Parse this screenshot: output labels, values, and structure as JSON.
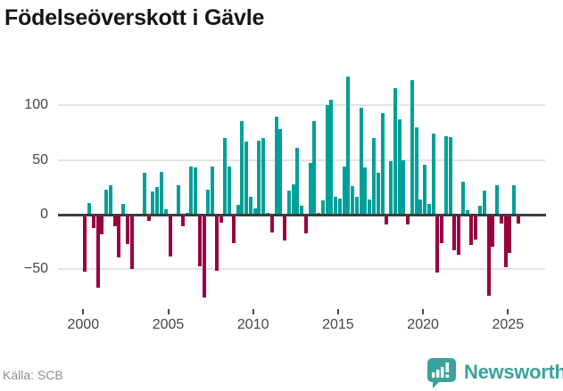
{
  "title": "Födelseöverskott i Gävle",
  "source": {
    "label": "Källa: SCB"
  },
  "branding": {
    "name": "Newsworthy",
    "color": "#3aa29c",
    "icon": "speech-bubble-with-bar-chart"
  },
  "chart_data": {
    "type": "bar",
    "title": "Födelseöverskott i Gävle",
    "xlabel": "",
    "ylabel": "",
    "frequency": "quarterly",
    "start_period": "2000-Q1",
    "end_period": "2025-Q3",
    "values": [
      -52,
      11,
      -12,
      -67,
      -18,
      23,
      27,
      -11,
      -39,
      10,
      -27,
      -50,
      0,
      0,
      38,
      -6,
      21,
      25,
      39,
      5,
      -38,
      0,
      27,
      -11,
      2,
      44,
      43,
      -47,
      -76,
      23,
      44,
      -51,
      -7,
      70,
      44,
      -26,
      9,
      86,
      67,
      16,
      6,
      68,
      70,
      2,
      -16,
      90,
      78,
      -24,
      22,
      28,
      61,
      8,
      -17,
      47,
      86,
      2,
      13,
      100,
      105,
      16,
      15,
      44,
      126,
      26,
      16,
      98,
      43,
      14,
      70,
      38,
      93,
      -9,
      49,
      116,
      87,
      50,
      -9,
      123,
      80,
      14,
      46,
      10,
      74,
      -53,
      -26,
      72,
      71,
      -33,
      -37,
      30,
      4,
      -28,
      -23,
      8,
      22,
      -74,
      -29,
      27,
      -8,
      -48,
      -35,
      27,
      -8
    ],
    "positive_color": "#00a099",
    "negative_color": "#990042",
    "yticks": [
      -50,
      0,
      50,
      100
    ],
    "ytick_labels": [
      "−50",
      "0",
      "50",
      "100"
    ],
    "xticks": [
      2000,
      2005,
      2010,
      2015,
      2020,
      2025
    ],
    "xtick_labels": [
      "2000",
      "2005",
      "2010",
      "2015",
      "2020",
      "2025"
    ],
    "ylim": [
      -80,
      135
    ],
    "legend": "none",
    "grid": "horizontal"
  }
}
